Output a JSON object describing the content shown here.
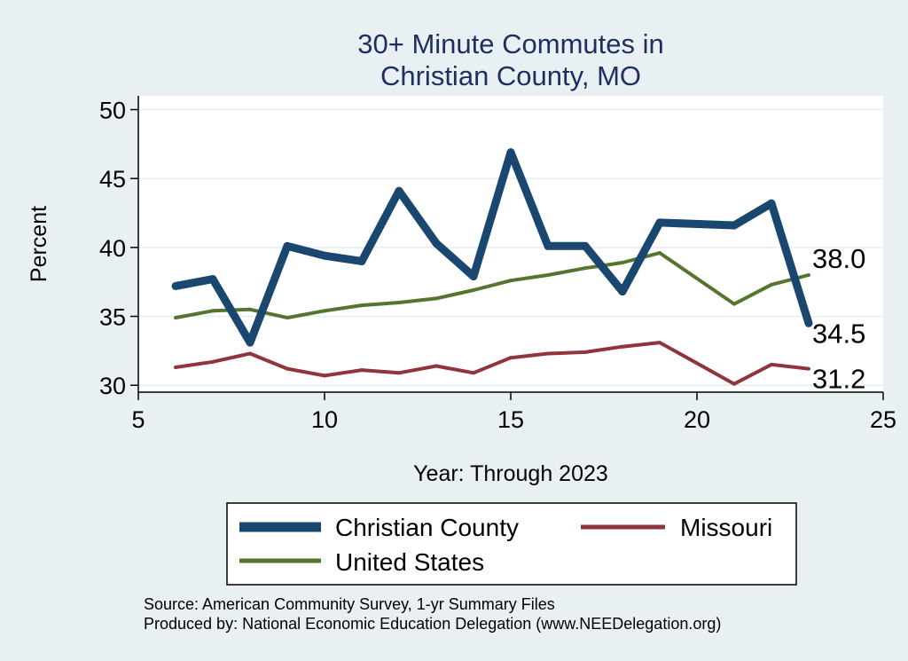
{
  "chart_data": {
    "type": "line",
    "title": [
      "30+ Minute Commutes in",
      "Christian County, MO"
    ],
    "xlabel": "Year: Through 2023",
    "ylabel": "Percent",
    "xlim": [
      5,
      25
    ],
    "ylim": [
      29.5,
      51
    ],
    "x_ticks": [
      5,
      10,
      15,
      20,
      25
    ],
    "y_ticks": [
      30,
      35,
      40,
      45,
      50
    ],
    "grid": true,
    "legend_position": "bottom",
    "series": [
      {
        "name": "Christian County",
        "color": "#1a476f",
        "width": 9,
        "x": [
          6,
          7,
          8,
          9,
          10,
          11,
          12,
          13,
          14,
          15,
          16,
          17,
          18,
          19,
          21,
          22,
          23
        ],
        "y": [
          37.2,
          37.7,
          33.1,
          40.1,
          39.4,
          39.0,
          44.1,
          40.3,
          37.9,
          46.9,
          40.1,
          40.1,
          36.8,
          41.8,
          41.6,
          43.2,
          34.5
        ],
        "end_label": "34.5"
      },
      {
        "name": "Missouri",
        "color": "#90353b",
        "width": 4,
        "x": [
          6,
          7,
          8,
          9,
          10,
          11,
          12,
          13,
          14,
          15,
          16,
          17,
          18,
          19,
          21,
          22,
          23
        ],
        "y": [
          31.3,
          31.7,
          32.3,
          31.2,
          30.7,
          31.1,
          30.9,
          31.4,
          30.9,
          32.0,
          32.3,
          32.4,
          32.8,
          33.1,
          30.1,
          31.5,
          31.2
        ],
        "end_label": "31.2"
      },
      {
        "name": "United States",
        "color": "#55752f",
        "width": 4,
        "x": [
          6,
          7,
          8,
          9,
          10,
          11,
          12,
          13,
          14,
          15,
          16,
          17,
          18,
          19,
          21,
          22,
          23
        ],
        "y": [
          34.9,
          35.4,
          35.5,
          34.9,
          35.4,
          35.8,
          36.0,
          36.3,
          36.9,
          37.6,
          38.0,
          38.5,
          38.9,
          39.6,
          35.9,
          37.3,
          38.0
        ],
        "end_label": "38.0"
      }
    ]
  },
  "footer": {
    "source": "Source: American Community Survey, 1-yr Summary Files",
    "producer": "Produced by: National Economic Education Delegation (www.NEEDelegation.org)"
  }
}
